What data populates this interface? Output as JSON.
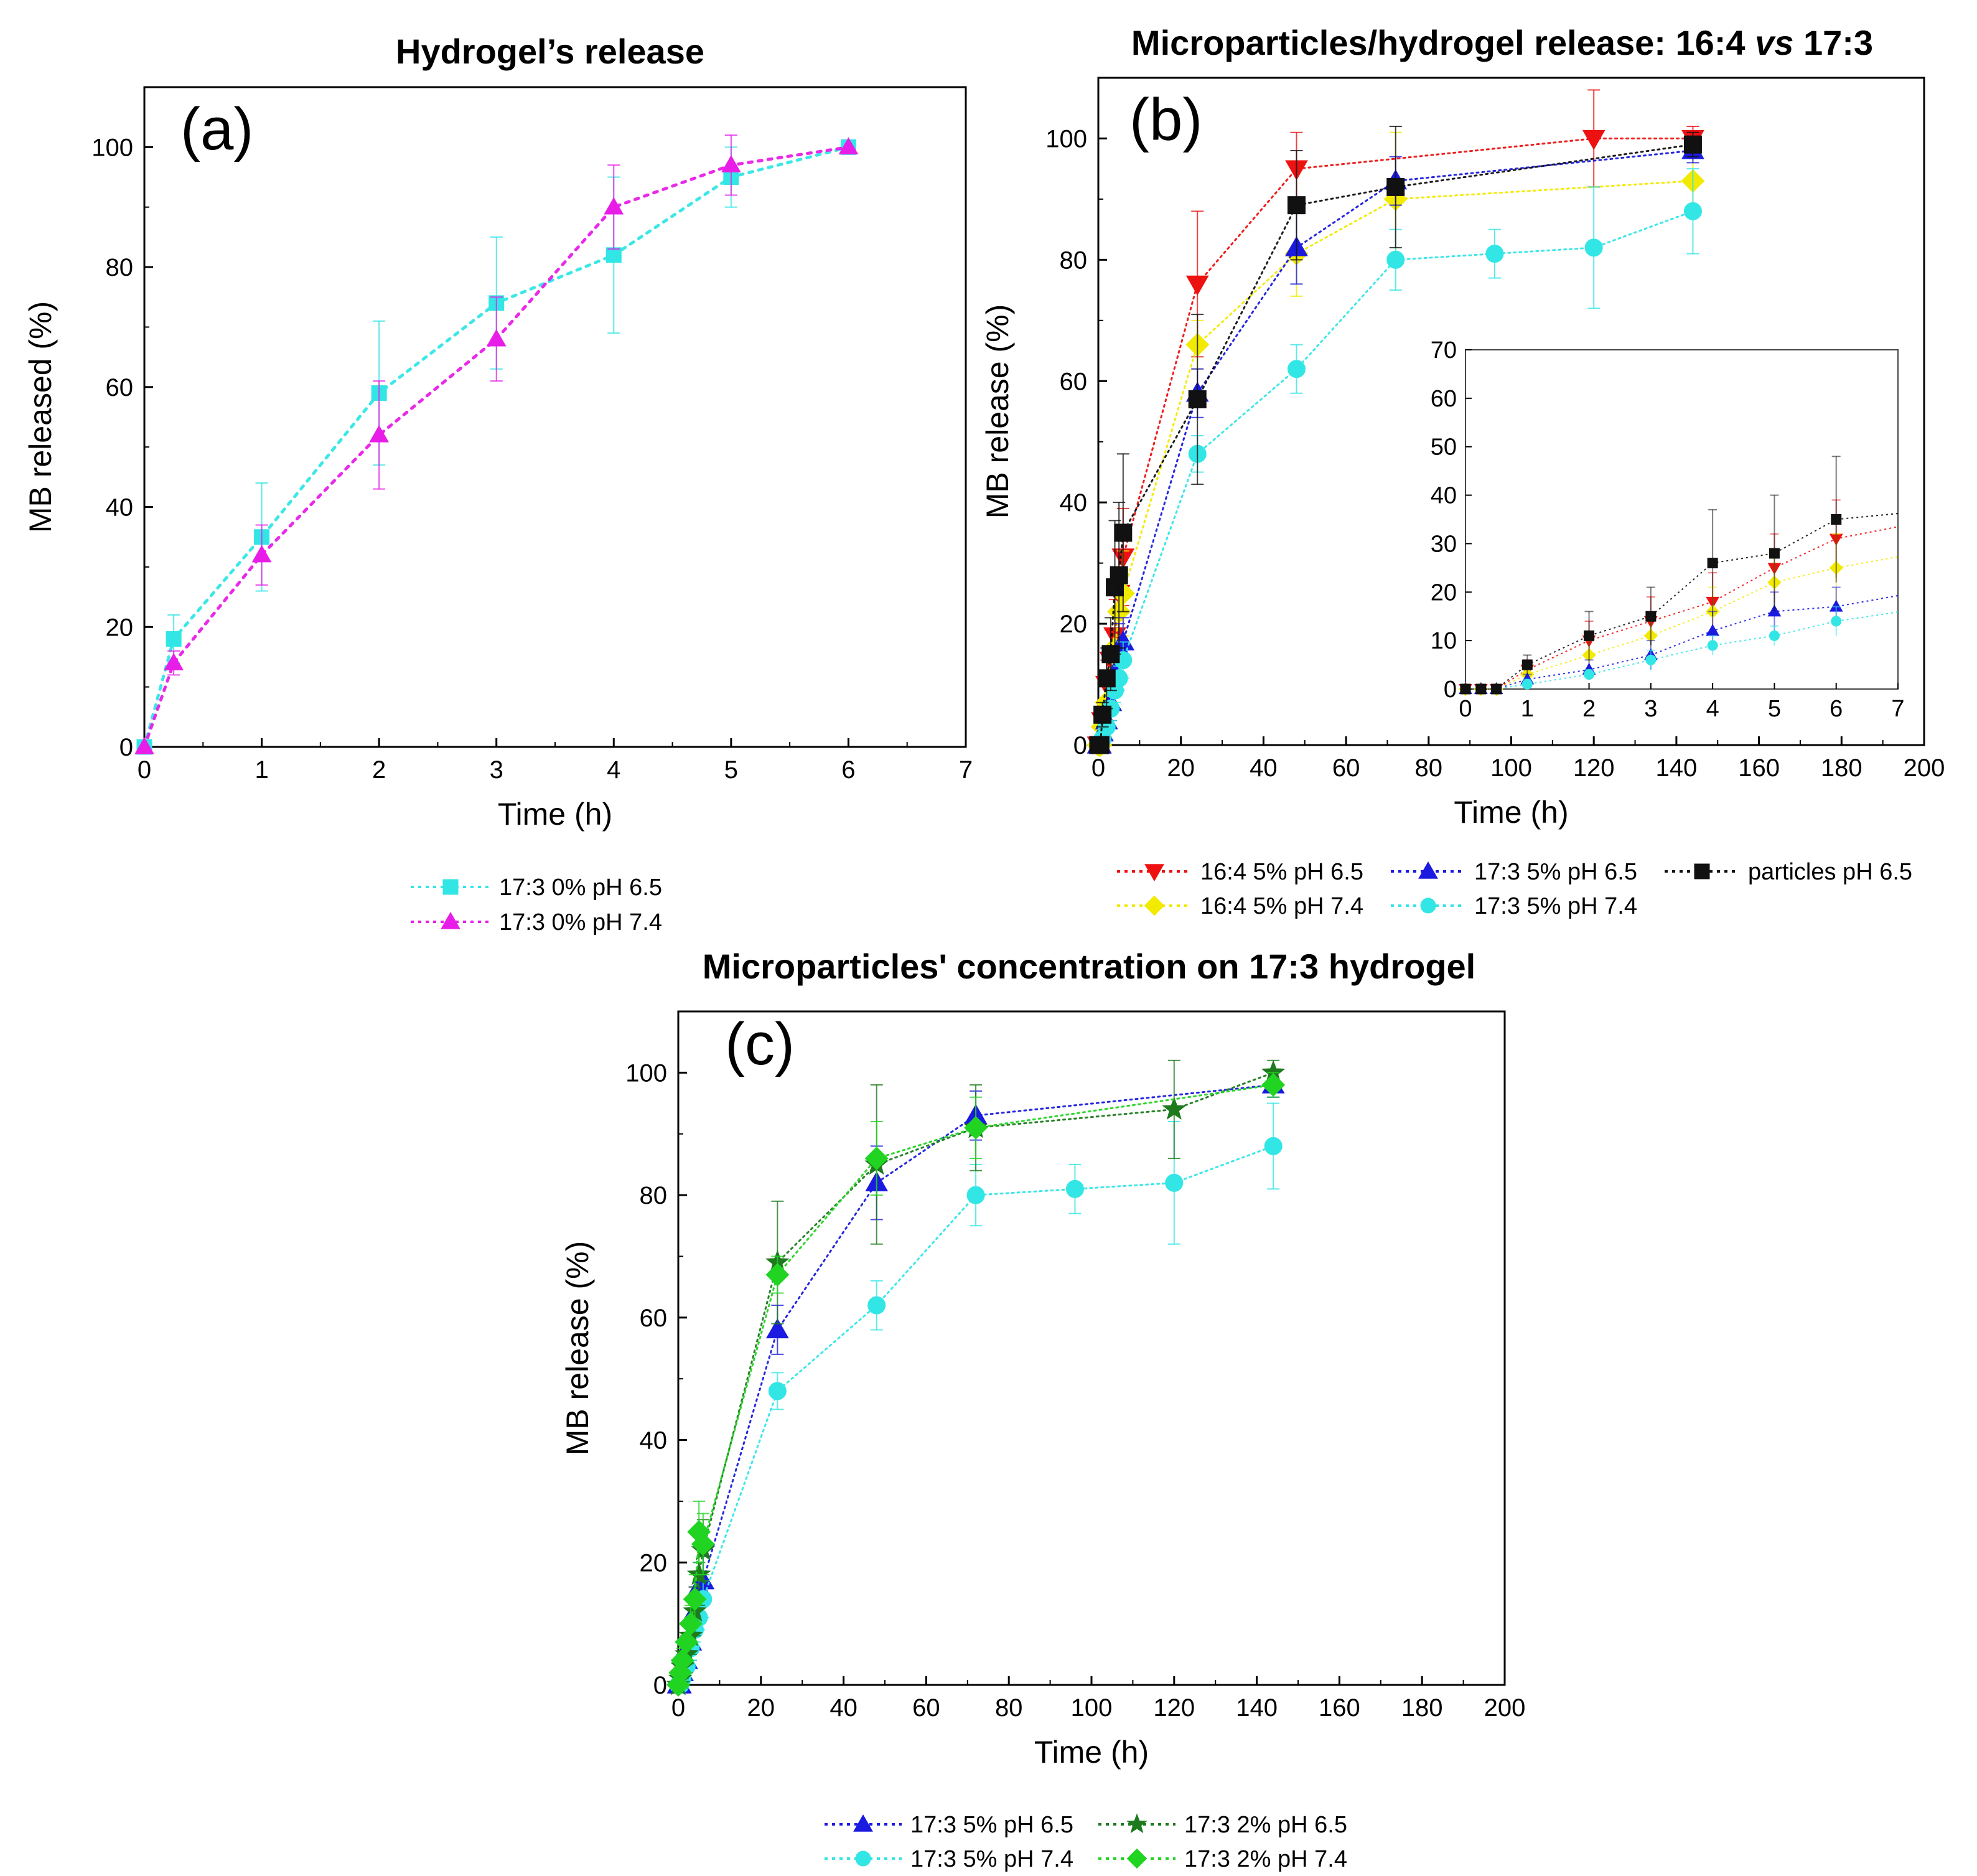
{
  "figure": {
    "colors": {
      "cyan": "#33E6E6",
      "magenta": "#E81EE8",
      "red": "#EE1111",
      "blue": "#1A1AE0",
      "black": "#111111",
      "yellow": "#F2EA00",
      "dark_green": "#1D7A1D",
      "light_green": "#22D422"
    }
  },
  "chart_data": [
    {
      "id": "a",
      "type": "line",
      "panel_label": "(a)",
      "title": "Hydrogel’s release",
      "xlabel": "Time (h)",
      "ylabel": "MB released (%)",
      "xlim": [
        0,
        7
      ],
      "ylim": [
        0,
        110
      ],
      "xticks": [
        0,
        1,
        2,
        3,
        4,
        5,
        6,
        7
      ],
      "yticks": [
        0,
        20,
        40,
        60,
        80,
        100
      ],
      "grid": false,
      "legend_position": "below",
      "series": [
        {
          "name": "17:3 0% pH 6.5",
          "marker": "square",
          "color": "#33E6E6",
          "x": [
            0,
            0.25,
            1,
            2,
            3,
            4,
            5,
            6
          ],
          "y": [
            0,
            18,
            35,
            59,
            74,
            82,
            95,
            100
          ],
          "err": [
            0,
            4,
            9,
            12,
            11,
            13,
            5,
            0
          ]
        },
        {
          "name": "17:3 0% pH 7.4",
          "marker": "triangle-up",
          "color": "#E81EE8",
          "x": [
            0,
            0.25,
            1,
            2,
            3,
            4,
            5,
            6
          ],
          "y": [
            0,
            14,
            32,
            52,
            68,
            90,
            97,
            100
          ],
          "err": [
            0,
            2,
            5,
            9,
            7,
            7,
            5,
            0
          ]
        }
      ]
    },
    {
      "id": "b",
      "type": "line",
      "panel_label": "(b)",
      "title_parts": [
        "Microparticles/hydrogel release: 16:4 ",
        "vs",
        " 17:3"
      ],
      "xlabel": "Time (h)",
      "ylabel": "MB release (%)",
      "xlim": [
        0,
        200
      ],
      "ylim": [
        0,
        110
      ],
      "xticks": [
        0,
        20,
        40,
        60,
        80,
        100,
        120,
        140,
        160,
        180,
        200
      ],
      "yticks": [
        0,
        20,
        40,
        60,
        80,
        100
      ],
      "grid": false,
      "legend_position": "below",
      "series": [
        {
          "name": "16:4 5% pH 6.5",
          "marker": "triangle-down",
          "color": "#EE1111",
          "x": [
            0,
            0.25,
            0.5,
            1,
            2,
            3,
            4,
            5,
            6,
            24,
            48,
            120,
            144
          ],
          "y": [
            0,
            0,
            0,
            4,
            10,
            14,
            18,
            25,
            31,
            76,
            95,
            100,
            100
          ],
          "err": [
            0,
            0,
            0,
            2,
            4,
            5,
            6,
            7,
            8,
            12,
            6,
            8,
            2
          ]
        },
        {
          "name": "16:4 5% pH 7.4",
          "marker": "diamond",
          "color": "#F2EA00",
          "x": [
            0,
            0.25,
            0.5,
            1,
            2,
            3,
            4,
            5,
            6,
            24,
            48,
            72,
            144
          ],
          "y": [
            0,
            0,
            0,
            3,
            7,
            11,
            16,
            22,
            25,
            66,
            81,
            90,
            93
          ],
          "err": [
            0,
            0,
            0,
            2,
            3,
            4,
            5,
            6,
            7,
            4,
            7,
            11,
            5
          ]
        },
        {
          "name": "17:3 5% pH 6.5",
          "marker": "triangle-up",
          "color": "#1A1AE0",
          "x": [
            0,
            0.25,
            0.5,
            1,
            2,
            3,
            4,
            5,
            6,
            24,
            48,
            72,
            144
          ],
          "y": [
            0,
            0,
            0,
            2,
            4,
            7,
            12,
            16,
            17,
            58,
            82,
            93,
            98
          ],
          "err": [
            0,
            0,
            0,
            1,
            2,
            3,
            4,
            4,
            4,
            4,
            6,
            4,
            2
          ]
        },
        {
          "name": "17:3 5% pH 7.4",
          "marker": "circle",
          "color": "#33E6E6",
          "x": [
            0,
            0.25,
            0.5,
            1,
            2,
            3,
            4,
            5,
            6,
            24,
            48,
            72,
            96,
            120,
            144
          ],
          "y": [
            0,
            0,
            0,
            1,
            3,
            6,
            9,
            11,
            14,
            48,
            62,
            80,
            81,
            82,
            88
          ],
          "err": [
            0,
            0,
            0,
            1,
            1,
            2,
            2,
            2,
            3,
            3,
            4,
            5,
            4,
            10,
            7
          ]
        },
        {
          "name": "particles pH 6.5",
          "marker": "square",
          "color": "#111111",
          "x": [
            0,
            0.25,
            0.5,
            1,
            2,
            3,
            4,
            5,
            6,
            24,
            48,
            72,
            144
          ],
          "y": [
            0,
            0,
            0,
            5,
            11,
            15,
            26,
            28,
            35,
            57,
            89,
            92,
            99
          ],
          "err": [
            0,
            0,
            0,
            2,
            5,
            6,
            11,
            12,
            13,
            14,
            9,
            10,
            2
          ]
        }
      ],
      "inset": {
        "xlim": [
          0,
          7
        ],
        "ylim": [
          0,
          70
        ],
        "xticks": [
          0,
          1,
          2,
          3,
          4,
          5,
          6,
          7
        ],
        "yticks": [
          0,
          10,
          20,
          30,
          40,
          50,
          60,
          70
        ]
      }
    },
    {
      "id": "c",
      "type": "line",
      "panel_label": "(c)",
      "title": "Microparticles' concentration on 17:3 hydrogel",
      "xlabel": "Time (h)",
      "ylabel": "MB release (%)",
      "xlim": [
        0,
        200
      ],
      "ylim": [
        0,
        110
      ],
      "xticks": [
        0,
        20,
        40,
        60,
        80,
        100,
        120,
        140,
        160,
        180,
        200
      ],
      "yticks": [
        0,
        20,
        40,
        60,
        80,
        100
      ],
      "grid": false,
      "legend_position": "below",
      "series": [
        {
          "name": "17:3 5% pH 6.5",
          "marker": "triangle-up",
          "color": "#1A1AE0",
          "x": [
            0,
            0.25,
            0.5,
            1,
            2,
            3,
            4,
            5,
            6,
            24,
            48,
            72,
            144
          ],
          "y": [
            0,
            0,
            0,
            2,
            4,
            7,
            12,
            16,
            17,
            58,
            82,
            93,
            98
          ],
          "err": [
            0,
            0,
            0,
            1,
            2,
            3,
            4,
            4,
            4,
            4,
            6,
            4,
            2
          ]
        },
        {
          "name": "17:3 5% pH 7.4",
          "marker": "circle",
          "color": "#33E6E6",
          "x": [
            0,
            0.25,
            0.5,
            1,
            2,
            3,
            4,
            5,
            6,
            24,
            48,
            72,
            96,
            120,
            144
          ],
          "y": [
            0,
            0,
            0,
            1,
            3,
            6,
            9,
            11,
            14,
            48,
            62,
            80,
            81,
            82,
            88
          ],
          "err": [
            0,
            0,
            0,
            1,
            1,
            2,
            2,
            2,
            3,
            3,
            4,
            5,
            4,
            10,
            7
          ]
        },
        {
          "name": "17:3 2% pH 6.5",
          "marker": "star",
          "color": "#1D7A1D",
          "x": [
            0,
            0.5,
            1,
            2,
            3,
            4,
            5,
            6,
            24,
            48,
            72,
            120,
            144
          ],
          "y": [
            0,
            1,
            3,
            5,
            8,
            12,
            18,
            22,
            69,
            85,
            91,
            94,
            100
          ],
          "err": [
            0,
            1,
            2,
            3,
            3,
            4,
            5,
            5,
            10,
            13,
            7,
            8,
            2
          ]
        },
        {
          "name": "17:3 2% pH 7.4",
          "marker": "diamond",
          "color": "#22D422",
          "x": [
            0,
            0.5,
            1,
            2,
            3,
            4,
            5,
            6,
            24,
            48,
            72,
            144
          ],
          "y": [
            0,
            2,
            4,
            7,
            10,
            14,
            25,
            23,
            67,
            86,
            91,
            98
          ],
          "err": [
            0,
            1,
            2,
            3,
            3,
            4,
            5,
            5,
            3,
            6,
            5,
            2
          ]
        }
      ]
    }
  ]
}
